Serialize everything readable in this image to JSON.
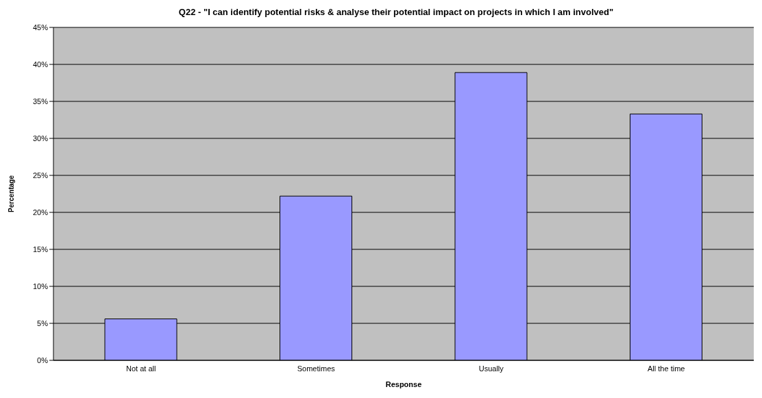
{
  "chart_data": {
    "type": "bar",
    "title": "Q22 - \"I can identify potential risks & analyse their potential impact on projects in which I am involved\"",
    "xlabel": "Response",
    "ylabel": "Percentage",
    "categories": [
      "Not at all",
      "Sometimes",
      "Usually",
      "All the time"
    ],
    "values": [
      5.6,
      22.2,
      38.9,
      33.3
    ],
    "color": "#9999ff",
    "ylim": [
      0,
      45
    ],
    "yticks": [
      {
        "value": 0,
        "label": "0%"
      },
      {
        "value": 5,
        "label": "5%"
      },
      {
        "value": 10,
        "label": "10%"
      },
      {
        "value": 15,
        "label": "15%"
      },
      {
        "value": 20,
        "label": "20%"
      },
      {
        "value": 25,
        "label": "25%"
      },
      {
        "value": 30,
        "label": "30%"
      },
      {
        "value": 35,
        "label": "35%"
      },
      {
        "value": 40,
        "label": "40%"
      },
      {
        "value": 45,
        "label": "45%"
      }
    ],
    "grid": "y",
    "legend": false
  }
}
